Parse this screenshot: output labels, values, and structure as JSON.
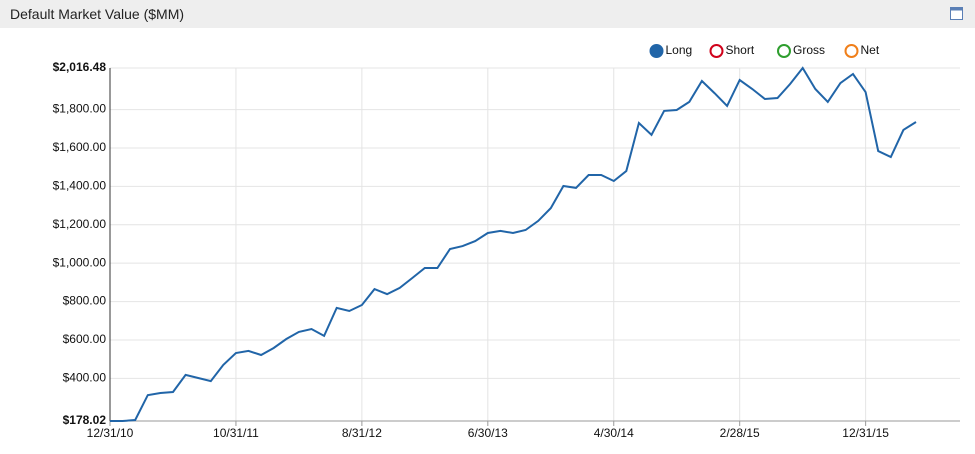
{
  "chart_data": {
    "type": "line",
    "title": "Default Market Value ($MM)",
    "categories": [
      "12/31/10",
      null,
      null,
      null,
      null,
      null,
      null,
      null,
      null,
      null,
      "10/31/11",
      null,
      null,
      null,
      null,
      null,
      null,
      null,
      null,
      null,
      "8/31/12",
      null,
      null,
      null,
      null,
      null,
      null,
      null,
      null,
      null,
      "6/30/13",
      null,
      null,
      null,
      null,
      null,
      null,
      null,
      null,
      null,
      "4/30/14",
      null,
      null,
      null,
      null,
      null,
      null,
      null,
      null,
      null,
      "2/28/15",
      null,
      null,
      null,
      null,
      null,
      null,
      null,
      null,
      null,
      "12/31/15",
      null,
      null,
      null,
      null
    ],
    "series": [
      {
        "name": "Long",
        "color": "#2165a8",
        "values": [
          178.02,
          178,
          183,
          313,
          324,
          329,
          418,
          402,
          386,
          470,
          532,
          543,
          522,
          558,
          605,
          642,
          657,
          621,
          767,
          751,
          782,
          865,
          839,
          871,
          923,
          975,
          975,
          1074,
          1089,
          1115,
          1157,
          1168,
          1157,
          1173,
          1220,
          1287,
          1402,
          1392,
          1459,
          1459,
          1428,
          1480,
          1730,
          1668,
          1793,
          1798,
          1840,
          1949,
          1886,
          1819,
          1954,
          1907,
          1855,
          1860,
          1933,
          2016.48,
          1907,
          1840,
          1938,
          1985,
          1891,
          1584,
          1553,
          1694,
          1735
        ]
      },
      {
        "name": "Short",
        "color": "#d0021b",
        "values": [
          null,
          null,
          null,
          null,
          null,
          null,
          null,
          null,
          null,
          null,
          null,
          null,
          null,
          null,
          null,
          null,
          null,
          null,
          null,
          null,
          null,
          null,
          null,
          null,
          null,
          null,
          null,
          null,
          null,
          null,
          null,
          null,
          null,
          null,
          null,
          null,
          null,
          null,
          null,
          null,
          null,
          null,
          null,
          null,
          null,
          null,
          null,
          null,
          null,
          null,
          null,
          null,
          null,
          null,
          null,
          null,
          null,
          null,
          null,
          null,
          null,
          null,
          null,
          null,
          null
        ]
      },
      {
        "name": "Gross",
        "color": "#2e9e2e",
        "values": [
          null,
          null,
          null,
          null,
          null,
          null,
          null,
          null,
          null,
          null,
          null,
          null,
          null,
          null,
          null,
          null,
          null,
          null,
          null,
          null,
          null,
          null,
          null,
          null,
          null,
          null,
          null,
          null,
          null,
          null,
          null,
          null,
          null,
          null,
          null,
          null,
          null,
          null,
          null,
          null,
          null,
          null,
          null,
          null,
          null,
          null,
          null,
          null,
          null,
          null,
          null,
          null,
          null,
          null,
          null,
          null,
          null,
          null,
          null,
          null,
          null,
          null,
          null,
          null,
          null
        ]
      },
      {
        "name": "Net",
        "color": "#f07f1a",
        "values": [
          null,
          null,
          null,
          null,
          null,
          null,
          null,
          null,
          null,
          null,
          null,
          null,
          null,
          null,
          null,
          null,
          null,
          null,
          null,
          null,
          null,
          null,
          null,
          null,
          null,
          null,
          null,
          null,
          null,
          null,
          null,
          null,
          null,
          null,
          null,
          null,
          null,
          null,
          null,
          null,
          null,
          null,
          null,
          null,
          null,
          null,
          null,
          null,
          null,
          null,
          null,
          null,
          null,
          null,
          null,
          null,
          null,
          null,
          null,
          null,
          null,
          null,
          null,
          null,
          null
        ]
      }
    ],
    "ylim": [
      178.02,
      2016.48
    ],
    "yticks": [
      {
        "value": 178.02,
        "label": "$178.02"
      },
      {
        "value": 400,
        "label": "$400.00"
      },
      {
        "value": 600,
        "label": "$600.00"
      },
      {
        "value": 800,
        "label": "$800.00"
      },
      {
        "value": 1000,
        "label": "$1,000.00"
      },
      {
        "value": 1200,
        "label": "$1,200.00"
      },
      {
        "value": 1400,
        "label": "$1,400.00"
      },
      {
        "value": 1600,
        "label": "$1,600.00"
      },
      {
        "value": 1800,
        "label": "$1,800.00"
      },
      {
        "value": 2016.48,
        "label": "$2,016.48"
      }
    ],
    "grid": true,
    "legend": "top-right"
  }
}
